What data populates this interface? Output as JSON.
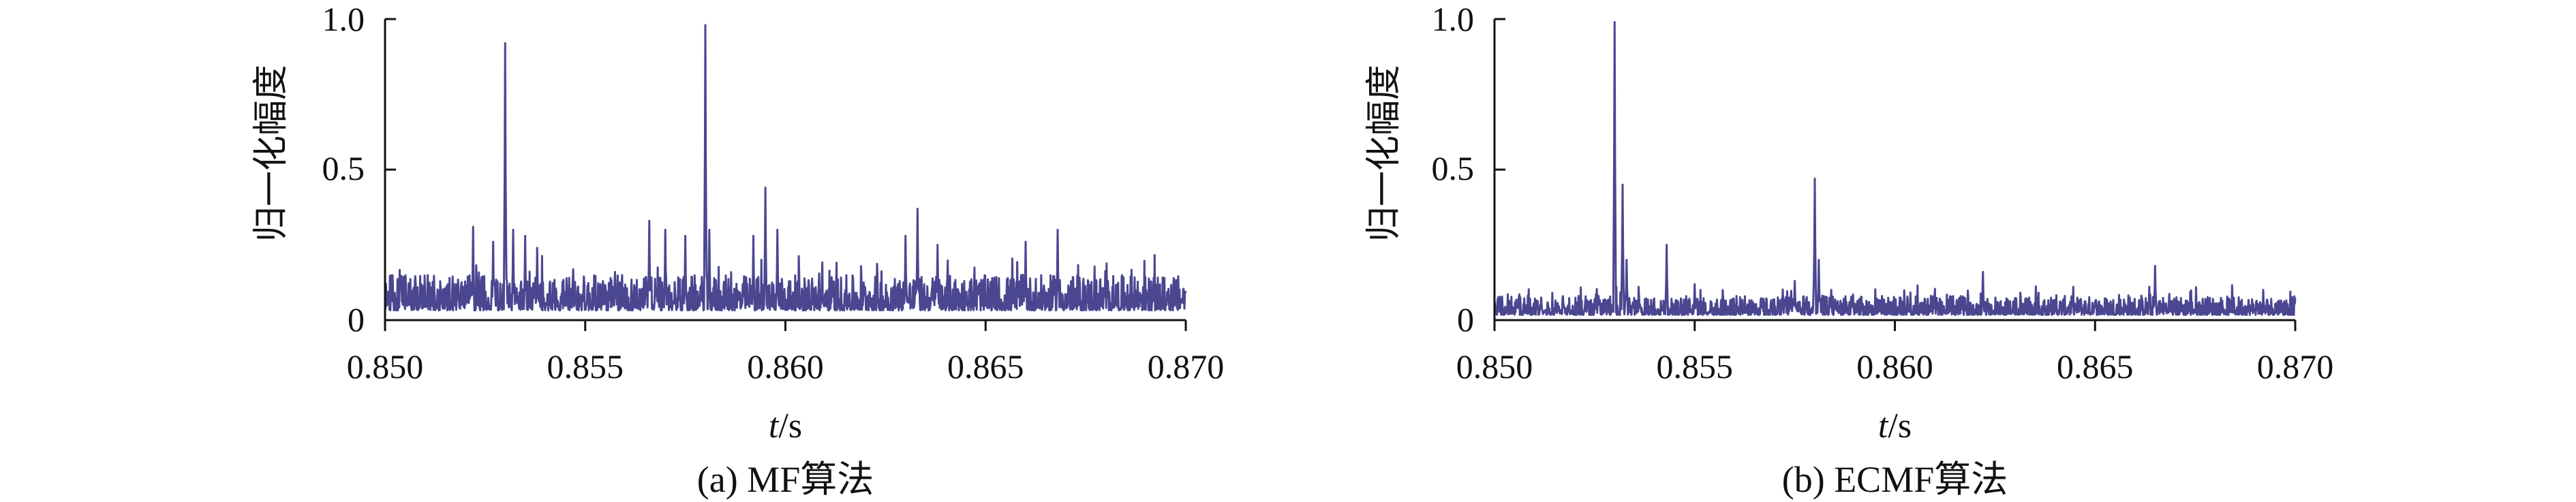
{
  "figure": {
    "captions": [
      "(a) MF算法",
      "(b) ECMF算法"
    ]
  },
  "chart_data": [
    {
      "type": "line",
      "subplot_label": "(a) MF算法",
      "xlabel_italic": "t",
      "xlabel_unit": "/s",
      "ylabel": "归一化幅度",
      "xlim": [
        0.85,
        0.87
      ],
      "ylim": [
        0,
        1.0
      ],
      "xticks": [
        0.85,
        0.855,
        0.86,
        0.865,
        0.87
      ],
      "xtick_labels": [
        "0.850",
        "0.855",
        "0.860",
        "0.865",
        "0.870"
      ],
      "yticks": [
        0,
        0.5,
        1.0
      ],
      "ytick_labels": [
        "0",
        "0.5",
        "1.0"
      ],
      "grid": false,
      "color": "#4b4690",
      "peaks": [
        {
          "x": 0.853,
          "y": 0.92
        },
        {
          "x": 0.8527,
          "y": 0.26
        },
        {
          "x": 0.8532,
          "y": 0.3
        },
        {
          "x": 0.8535,
          "y": 0.28
        },
        {
          "x": 0.8538,
          "y": 0.24
        },
        {
          "x": 0.8522,
          "y": 0.31
        },
        {
          "x": 0.8566,
          "y": 0.33
        },
        {
          "x": 0.857,
          "y": 0.3
        },
        {
          "x": 0.8575,
          "y": 0.28
        },
        {
          "x": 0.858,
          "y": 0.98
        },
        {
          "x": 0.8581,
          "y": 0.3
        },
        {
          "x": 0.8595,
          "y": 0.44
        },
        {
          "x": 0.8592,
          "y": 0.28
        },
        {
          "x": 0.8598,
          "y": 0.3
        },
        {
          "x": 0.8633,
          "y": 0.37
        },
        {
          "x": 0.863,
          "y": 0.28
        },
        {
          "x": 0.8638,
          "y": 0.25
        },
        {
          "x": 0.866,
          "y": 0.26
        },
        {
          "x": 0.8668,
          "y": 0.3
        }
      ],
      "noise_level": 0.13
    },
    {
      "type": "line",
      "subplot_label": "(b) ECMF算法",
      "xlabel_italic": "t",
      "xlabel_unit": "/s",
      "ylabel": "归一化幅度",
      "xlim": [
        0.85,
        0.87
      ],
      "ylim": [
        0,
        1.0
      ],
      "xticks": [
        0.85,
        0.855,
        0.86,
        0.865,
        0.87
      ],
      "xtick_labels": [
        "0.850",
        "0.855",
        "0.860",
        "0.865",
        "0.870"
      ],
      "yticks": [
        0,
        0.5,
        1.0
      ],
      "ytick_labels": [
        "0",
        "0.5",
        "1.0"
      ],
      "grid": false,
      "color": "#4b4690",
      "peaks": [
        {
          "x": 0.853,
          "y": 0.99
        },
        {
          "x": 0.8532,
          "y": 0.45
        },
        {
          "x": 0.8533,
          "y": 0.2
        },
        {
          "x": 0.8543,
          "y": 0.25
        },
        {
          "x": 0.855,
          "y": 0.12
        },
        {
          "x": 0.8575,
          "y": 0.13
        },
        {
          "x": 0.858,
          "y": 0.47
        },
        {
          "x": 0.8581,
          "y": 0.2
        },
        {
          "x": 0.8622,
          "y": 0.16
        },
        {
          "x": 0.8665,
          "y": 0.18
        }
      ],
      "noise_level": 0.07
    }
  ]
}
